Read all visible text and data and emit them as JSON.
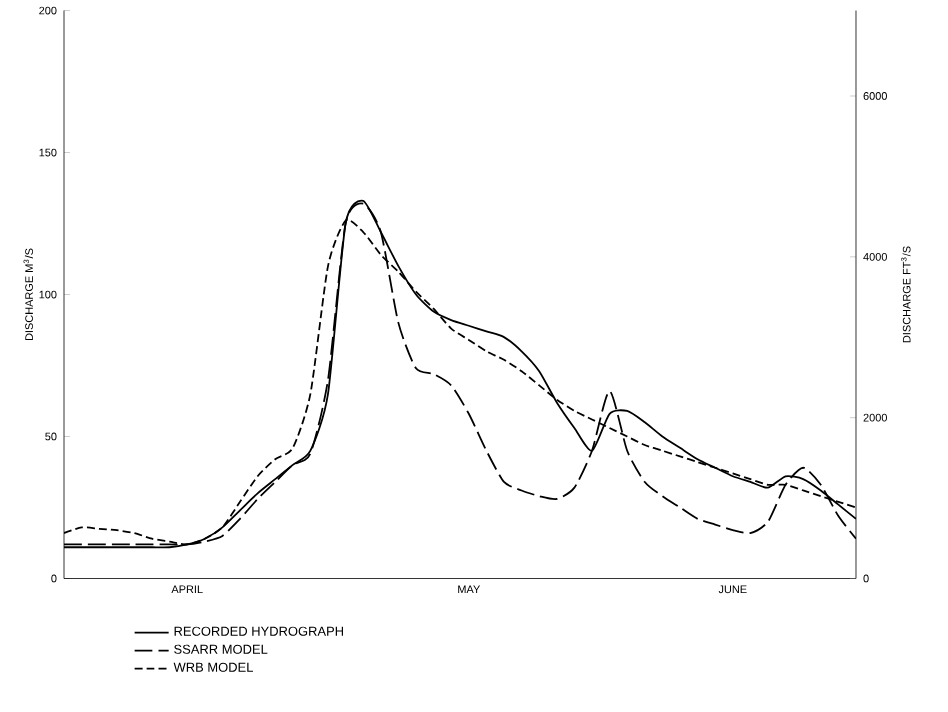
{
  "chart_data": {
    "type": "line",
    "ylabel": "DISCHARGE M$^{3}$/S",
    "y2label": "DISCHARGE FT$^{3}$/S",
    "categories": [
      null,
      null,
      null,
      null,
      null,
      null,
      null,
      "APRIL",
      null,
      null,
      null,
      null,
      null,
      null,
      null,
      null,
      null,
      null,
      null,
      null,
      null,
      null,
      null,
      "MAY",
      null,
      null,
      null,
      null,
      null,
      null,
      null,
      null,
      null,
      null,
      null,
      null,
      null,
      null,
      "JUNE",
      null,
      null,
      null,
      null,
      null,
      null,
      null
    ],
    "ylim": [
      0,
      200
    ],
    "yticks": [
      0,
      50,
      100,
      150,
      200
    ],
    "y2lim": [
      0,
      7063
    ],
    "y2ticks": [
      0,
      2000,
      4000,
      6000
    ],
    "grid": false,
    "legend": "bottom left",
    "marker": "none",
    "series": [
      {
        "name": "RECORDED HYDROGRAPH",
        "color": "#000000",
        "line_style": "solid",
        "values": [
          11,
          11,
          11,
          11,
          11,
          11,
          11,
          12,
          14,
          18,
          24,
          30,
          35,
          40,
          45,
          65,
          125,
          133,
          122,
          110,
          100,
          94,
          91,
          89,
          87,
          85,
          80,
          73,
          62,
          53,
          45,
          58,
          59,
          55,
          50,
          46,
          42,
          39,
          36,
          34,
          32,
          36,
          35,
          31,
          26,
          21
        ]
      },
      {
        "name": "SSARR MODEL",
        "color": "#000000",
        "line_style": "dashed",
        "values": [
          12,
          12,
          12,
          12,
          12,
          12,
          12,
          12,
          13,
          15,
          21,
          28,
          34,
          40,
          44,
          70,
          125,
          132,
          122,
          90,
          74,
          72,
          68,
          58,
          45,
          34,
          31,
          29,
          28,
          32,
          45,
          66,
          45,
          34,
          29,
          25,
          21,
          19,
          17,
          16,
          20,
          33,
          39,
          33,
          22,
          14
        ]
      },
      {
        "name": "WRB MODEL",
        "color": "#000000",
        "line_style": "dashed",
        "values": [
          16,
          18,
          17.5,
          17,
          16,
          14,
          13,
          12,
          14,
          18,
          27,
          36,
          42,
          46,
          65,
          110,
          126,
          122,
          114,
          108,
          101,
          95,
          88,
          84,
          80,
          77,
          73,
          68,
          63,
          59,
          56,
          53,
          50,
          47,
          45,
          43,
          41,
          39,
          37,
          35,
          33,
          33,
          31,
          29,
          27,
          25
        ]
      }
    ]
  }
}
